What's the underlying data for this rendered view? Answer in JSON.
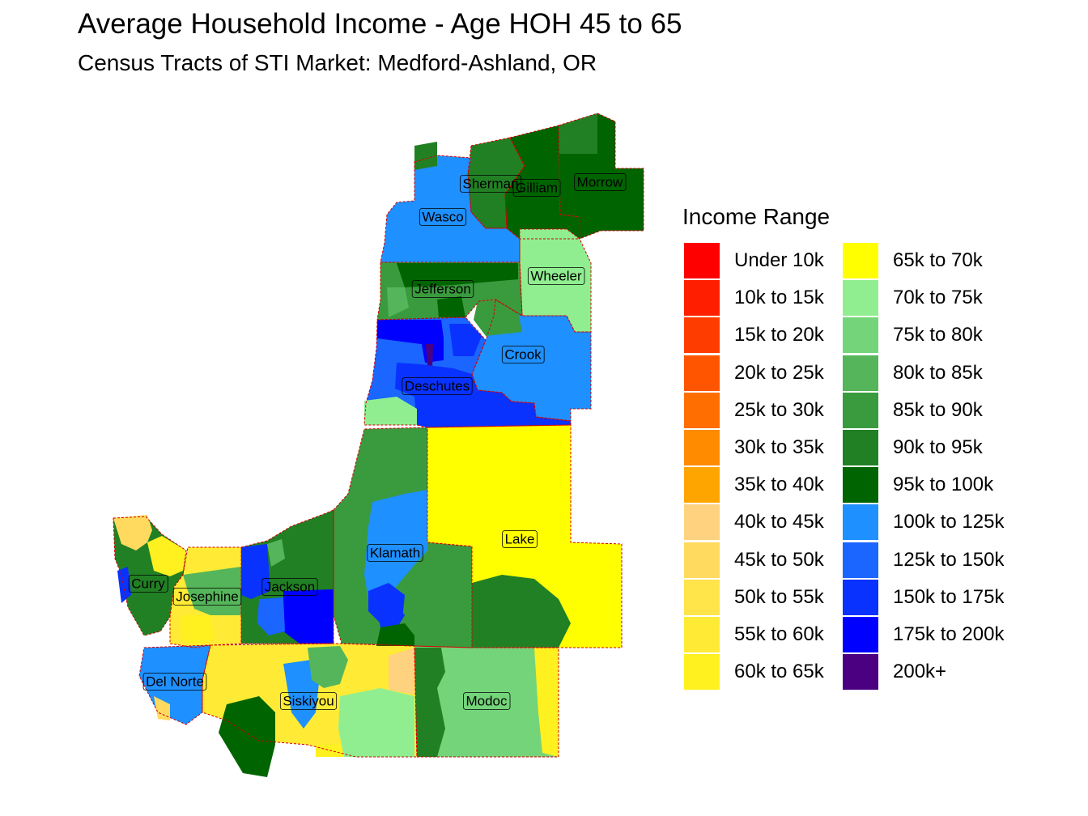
{
  "title": "Average Household Income - Age HOH 45 to 65",
  "subtitle": "Census Tracts of STI Market: Medford-Ashland, OR",
  "legend": {
    "title": "Income Range",
    "items": [
      {
        "label": "Under 10k",
        "color": "#FF0000"
      },
      {
        "label": "10k to 15k",
        "color": "#FF1E00"
      },
      {
        "label": "15k to 20k",
        "color": "#FF3C00"
      },
      {
        "label": "20k to 25k",
        "color": "#FF5500"
      },
      {
        "label": "25k to 30k",
        "color": "#FF6E00"
      },
      {
        "label": "30k to 35k",
        "color": "#FF8C00"
      },
      {
        "label": "35k to 40k",
        "color": "#FFA500"
      },
      {
        "label": "40k to 45k",
        "color": "#FFD27F"
      },
      {
        "label": "45k to 50k",
        "color": "#FFDA5E"
      },
      {
        "label": "50k to 55k",
        "color": "#FFE44A"
      },
      {
        "label": "55k to 60k",
        "color": "#FFEB35"
      },
      {
        "label": "60k to 65k",
        "color": "#FFF020"
      },
      {
        "label": "65k to 70k",
        "color": "#FFFF00"
      },
      {
        "label": "70k to 75k",
        "color": "#90EE90"
      },
      {
        "label": "75k to 80k",
        "color": "#74D47A"
      },
      {
        "label": "80k to 85k",
        "color": "#55B55A"
      },
      {
        "label": "85k to 90k",
        "color": "#3A9A3E"
      },
      {
        "label": "90k to 95k",
        "color": "#228024"
      },
      {
        "label": "95k to 100k",
        "color": "#006400"
      },
      {
        "label": "100k to 125k",
        "color": "#1E90FF"
      },
      {
        "label": "125k to 150k",
        "color": "#1A66FF"
      },
      {
        "label": "150k to 175k",
        "color": "#0A32FF"
      },
      {
        "label": "175k to 200k",
        "color": "#0000FF"
      },
      {
        "label": "200k+",
        "color": "#4B0082"
      }
    ]
  },
  "counties": [
    {
      "name": "Sherman",
      "color": "#228024"
    },
    {
      "name": "Gilliam",
      "color": "#006400"
    },
    {
      "name": "Morrow",
      "color": "#006400"
    },
    {
      "name": "Wasco",
      "color": "#1E90FF"
    },
    {
      "name": "Wheeler",
      "color": "#90EE90"
    },
    {
      "name": "Jefferson",
      "color": "#3A9A3E"
    },
    {
      "name": "Crook",
      "color": "#1E90FF"
    },
    {
      "name": "Deschutes",
      "color": "#1A66FF"
    },
    {
      "name": "Lake",
      "color": "#FFFF00"
    },
    {
      "name": "Klamath",
      "color": "#3A9A3E"
    },
    {
      "name": "Curry",
      "color": "#228024"
    },
    {
      "name": "Josephine",
      "color": "#FFEB35"
    },
    {
      "name": "Jackson",
      "color": "#228024"
    },
    {
      "name": "Del Norte",
      "color": "#1E90FF"
    },
    {
      "name": "Siskiyou",
      "color": "#FFEB35"
    },
    {
      "name": "Modoc",
      "color": "#74D47A"
    }
  ]
}
